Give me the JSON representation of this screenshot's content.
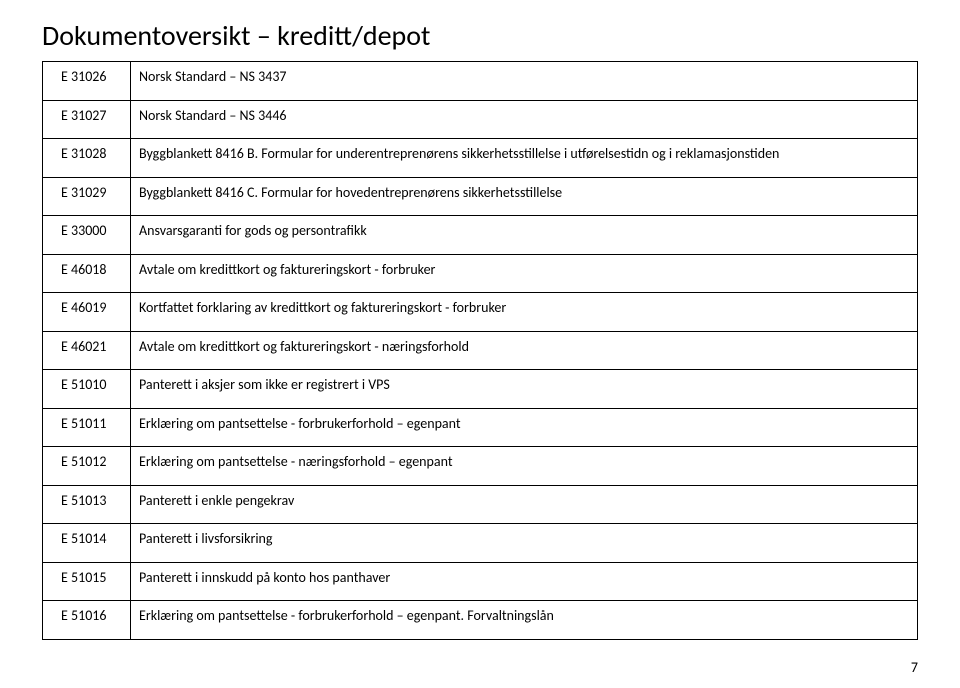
{
  "title": "Dokumentoversikt – kreditt/depot",
  "page_number": "7",
  "rows": [
    {
      "code": "E 31026",
      "desc": "Norsk Standard – NS 3437"
    },
    {
      "code": "E 31027",
      "desc": "Norsk Standard – NS 3446"
    },
    {
      "code": "E 31028",
      "desc": "Byggblankett 8416 B. Formular for underentreprenørens sikkerhetsstillelse i utførelsestidn og i reklamasjonstiden"
    },
    {
      "code": "E 31029",
      "desc": "Byggblankett 8416 C. Formular for hovedentreprenørens sikkerhetsstillelse"
    },
    {
      "code": "E 33000",
      "desc": "Ansvarsgaranti for gods og persontrafikk"
    },
    {
      "code": "E 46018",
      "desc": "Avtale om kredittkort og faktureringskort - forbruker"
    },
    {
      "code": "E 46019",
      "desc": "Kortfattet forklaring av kredittkort og faktureringskort -  forbruker"
    },
    {
      "code": "E 46021",
      "desc": "Avtale om kredittkort og faktureringskort - næringsforhold"
    },
    {
      "code": "E 51010",
      "desc": "Panterett i aksjer som ikke er registrert i VPS"
    },
    {
      "code": "E 51011",
      "desc": "Erklæring om pantsettelse - forbrukerforhold – egenpant"
    },
    {
      "code": "E 51012",
      "desc": "Erklæring om pantsettelse - næringsforhold – egenpant"
    },
    {
      "code": "E 51013",
      "desc": "Panterett i enkle pengekrav"
    },
    {
      "code": "E 51014",
      "desc": "Panterett i livsforsikring"
    },
    {
      "code": "E 51015",
      "desc": "Panterett i innskudd på konto hos panthaver"
    },
    {
      "code": "E 51016",
      "desc": "Erklæring om pantsettelse - forbrukerforhold – egenpant. Forvaltningslån"
    }
  ]
}
